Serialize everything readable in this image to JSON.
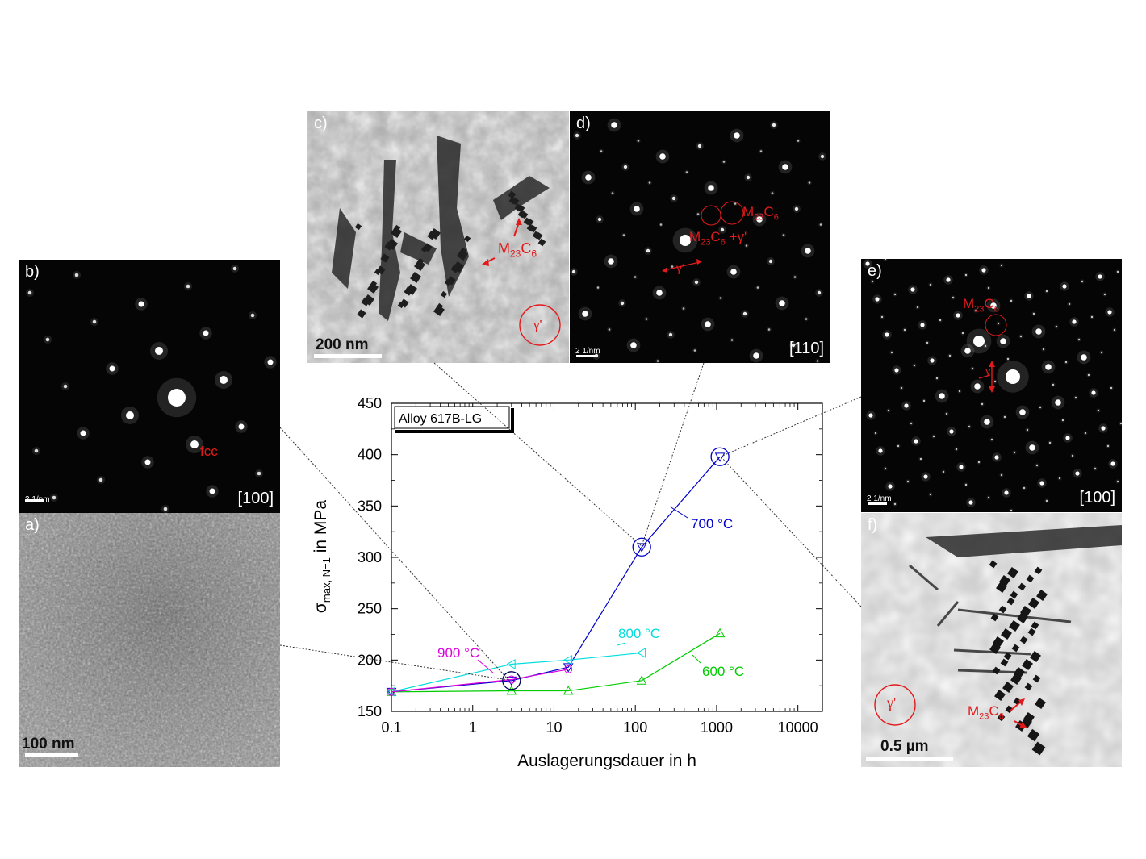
{
  "panels": {
    "a": {
      "label": "a)",
      "scale": "100 nm"
    },
    "b": {
      "label": "b)",
      "scale": "2 1/nm",
      "zone": "[100]",
      "annotation": "fcc"
    },
    "c": {
      "label": "c)",
      "scale": "200 nm",
      "ann_carbide_base": "M",
      "ann_carbide_sub1": "23",
      "ann_carbide_mid": "C",
      "ann_carbide_sub2": "6",
      "ann_gamma": "γ'"
    },
    "d": {
      "label": "d)",
      "scale": "2 1/nm",
      "zone": "[110]",
      "ann_carbide_base": "M",
      "ann_carbide_sub1": "23",
      "ann_carbide_mid": "C",
      "ann_carbide_sub2": "6",
      "ann_mixed_suffix": " +γ'",
      "ann_gamma": "γ'"
    },
    "e": {
      "label": "e)",
      "scale": "2 1/nm",
      "zone": "[100]",
      "ann_carbide_base": "M",
      "ann_carbide_sub1": "23",
      "ann_carbide_mid": "C",
      "ann_carbide_sub2": "6",
      "ann_gamma": "γ'"
    },
    "f": {
      "label": "f)",
      "scale": "0.5 µm",
      "ann_carbide_base": "M",
      "ann_carbide_sub1": "23",
      "ann_carbide_mid": "C",
      "ann_carbide_sub2": "6",
      "ann_gamma": "γ'"
    }
  },
  "colors": {
    "annotation_red": "#e31a1c",
    "600": "#00cc00",
    "700": "#0000cc",
    "800": "#00dddd",
    "900": "#dd00dd"
  },
  "chart_data": {
    "type": "line",
    "legend_box": "Alloy 617B-LG",
    "xlabel": "Auslagerungsdauer in h",
    "ylabel_main": "σ",
    "ylabel_sub": "max, N=1",
    "ylabel_tail": " in MPa",
    "xscale": "log",
    "xlim": [
      0.1,
      20000
    ],
    "ylim": [
      150,
      450
    ],
    "xticks": [
      0.1,
      1,
      10,
      100,
      1000,
      10000
    ],
    "xtick_labels": [
      "0.1",
      "1",
      "10",
      "100",
      "1000",
      "10000"
    ],
    "yticks": [
      150,
      200,
      250,
      300,
      350,
      400,
      450
    ],
    "ytick_labels": [
      "150",
      "200",
      "250",
      "300",
      "350",
      "400",
      "450"
    ],
    "series": [
      {
        "name": "600 °C",
        "marker": "triangle-up",
        "color": "#00cc00",
        "x": [
          0.1,
          3,
          15,
          120,
          1100
        ],
        "y": [
          169,
          170,
          170,
          180,
          226
        ]
      },
      {
        "name": "700 °C",
        "marker": "triangle-down",
        "color": "#0000cc",
        "x": [
          0.1,
          3,
          15,
          120,
          1100
        ],
        "y": [
          169,
          180,
          193,
          310,
          398
        ]
      },
      {
        "name": "800 °C",
        "marker": "triangle-left",
        "color": "#00dddd",
        "x": [
          0.1,
          3,
          15,
          120
        ],
        "y": [
          169,
          196,
          200,
          207
        ]
      },
      {
        "name": "900 °C",
        "marker": "circle",
        "color": "#dd00dd",
        "x": [
          0.1,
          3,
          15
        ],
        "y": [
          169,
          181,
          191
        ]
      }
    ],
    "highlighted_points": [
      {
        "series": "700 °C",
        "x": 3,
        "y": 180
      },
      {
        "series": "700 °C",
        "x": 120,
        "y": 310
      },
      {
        "series": "700 °C",
        "x": 1100,
        "y": 398
      }
    ]
  }
}
